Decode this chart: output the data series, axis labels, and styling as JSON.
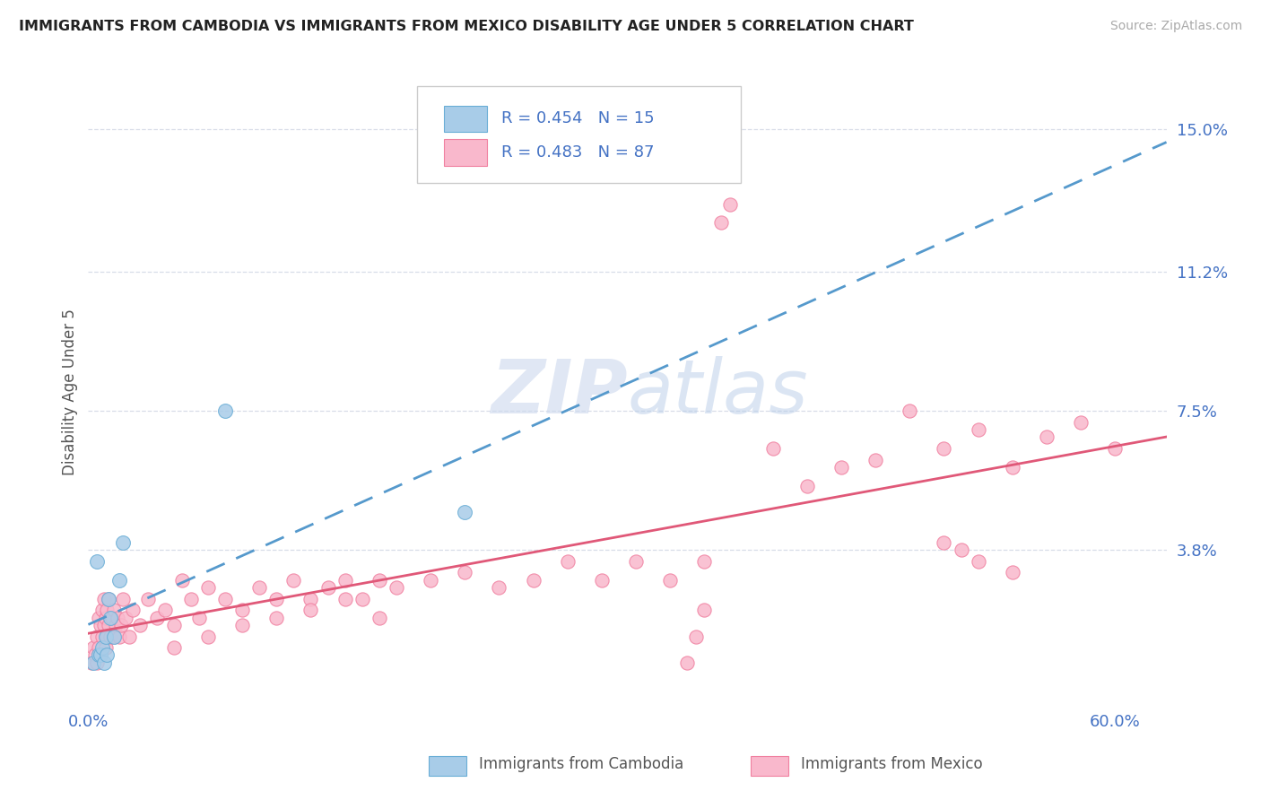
{
  "title": "IMMIGRANTS FROM CAMBODIA VS IMMIGRANTS FROM MEXICO DISABILITY AGE UNDER 5 CORRELATION CHART",
  "source": "Source: ZipAtlas.com",
  "ylabel": "Disability Age Under 5",
  "xlim": [
    0.0,
    0.63
  ],
  "ylim": [
    -0.003,
    0.163
  ],
  "ytick_vals": [
    0.038,
    0.075,
    0.112,
    0.15
  ],
  "ytick_labels": [
    "3.8%",
    "7.5%",
    "11.2%",
    "15.0%"
  ],
  "xtick_vals": [
    0.0,
    0.6
  ],
  "xtick_labels": [
    "0.0%",
    "60.0%"
  ],
  "legend_r_cambodia": "R = 0.454",
  "legend_n_cambodia": "N = 15",
  "legend_r_mexico": "R = 0.483",
  "legend_n_mexico": "N = 87",
  "cambodia_face_color": "#a8cce8",
  "cambodia_edge_color": "#6aaed6",
  "mexico_face_color": "#f9b8cc",
  "mexico_edge_color": "#f080a0",
  "cambodia_line_color": "#5599cc",
  "mexico_line_color": "#e05878",
  "watermark_color": "#ccd8ee",
  "title_color": "#222222",
  "axis_label_color": "#4472c4",
  "grid_color": "#d8dde8",
  "cam_x": [
    0.003,
    0.005,
    0.006,
    0.007,
    0.008,
    0.009,
    0.01,
    0.011,
    0.012,
    0.013,
    0.015,
    0.018,
    0.02,
    0.08,
    0.22
  ],
  "cam_y": [
    0.008,
    0.035,
    0.01,
    0.01,
    0.012,
    0.008,
    0.015,
    0.01,
    0.025,
    0.02,
    0.015,
    0.03,
    0.04,
    0.075,
    0.048
  ],
  "mex_x": [
    0.002,
    0.003,
    0.004,
    0.005,
    0.005,
    0.006,
    0.006,
    0.007,
    0.007,
    0.008,
    0.008,
    0.009,
    0.009,
    0.01,
    0.01,
    0.011,
    0.011,
    0.012,
    0.012,
    0.013,
    0.014,
    0.015,
    0.015,
    0.016,
    0.017,
    0.018,
    0.019,
    0.02,
    0.022,
    0.024,
    0.026,
    0.03,
    0.035,
    0.04,
    0.045,
    0.05,
    0.055,
    0.06,
    0.065,
    0.07,
    0.08,
    0.09,
    0.1,
    0.11,
    0.12,
    0.13,
    0.14,
    0.15,
    0.16,
    0.17,
    0.18,
    0.2,
    0.22,
    0.24,
    0.26,
    0.28,
    0.3,
    0.32,
    0.34,
    0.36,
    0.37,
    0.375,
    0.4,
    0.42,
    0.44,
    0.46,
    0.48,
    0.5,
    0.52,
    0.54,
    0.56,
    0.58,
    0.6,
    0.35,
    0.355,
    0.36,
    0.5,
    0.51,
    0.52,
    0.54,
    0.05,
    0.07,
    0.09,
    0.11,
    0.13,
    0.15,
    0.17
  ],
  "mex_y": [
    0.008,
    0.012,
    0.01,
    0.015,
    0.008,
    0.02,
    0.012,
    0.018,
    0.01,
    0.022,
    0.015,
    0.025,
    0.018,
    0.02,
    0.012,
    0.015,
    0.022,
    0.018,
    0.025,
    0.015,
    0.02,
    0.022,
    0.015,
    0.018,
    0.02,
    0.015,
    0.018,
    0.025,
    0.02,
    0.015,
    0.022,
    0.018,
    0.025,
    0.02,
    0.022,
    0.018,
    0.03,
    0.025,
    0.02,
    0.028,
    0.025,
    0.022,
    0.028,
    0.025,
    0.03,
    0.025,
    0.028,
    0.03,
    0.025,
    0.03,
    0.028,
    0.03,
    0.032,
    0.028,
    0.03,
    0.035,
    0.03,
    0.035,
    0.03,
    0.035,
    0.125,
    0.13,
    0.065,
    0.055,
    0.06,
    0.062,
    0.075,
    0.065,
    0.07,
    0.06,
    0.068,
    0.072,
    0.065,
    0.008,
    0.015,
    0.022,
    0.04,
    0.038,
    0.035,
    0.032,
    0.012,
    0.015,
    0.018,
    0.02,
    0.022,
    0.025,
    0.02
  ]
}
